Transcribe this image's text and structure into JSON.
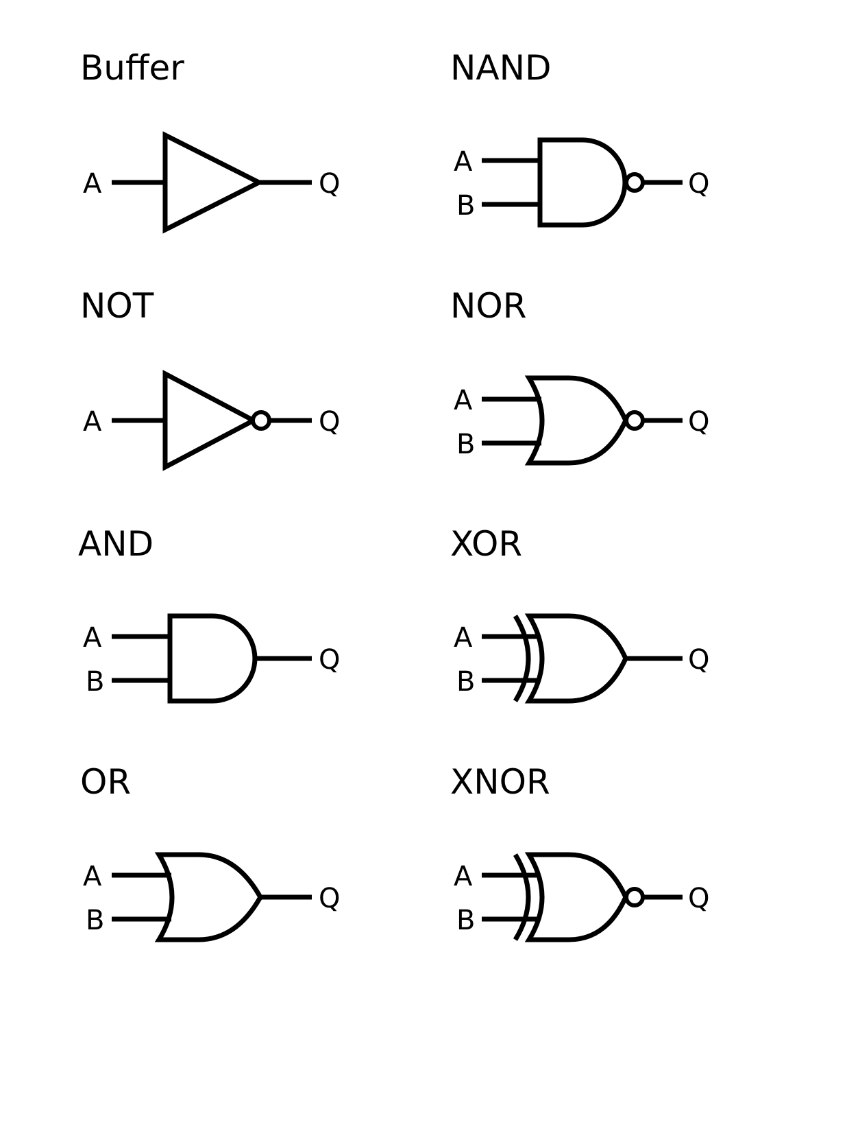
{
  "gates": [
    {
      "id": "buffer",
      "title": "Buffer",
      "shape": "buffer",
      "inputs": [
        "A"
      ],
      "output": "Q",
      "inverted": false
    },
    {
      "id": "nand",
      "title": "NAND",
      "shape": "and",
      "inputs": [
        "A",
        "B"
      ],
      "output": "Q",
      "inverted": true
    },
    {
      "id": "not",
      "title": "NOT",
      "shape": "buffer",
      "inputs": [
        "A"
      ],
      "output": "Q",
      "inverted": true
    },
    {
      "id": "nor",
      "title": "NOR",
      "shape": "or",
      "inputs": [
        "A",
        "B"
      ],
      "output": "Q",
      "inverted": true
    },
    {
      "id": "and",
      "title": "AND",
      "shape": "and",
      "inputs": [
        "A",
        "B"
      ],
      "output": "Q",
      "inverted": false
    },
    {
      "id": "xor",
      "title": "XOR",
      "shape": "xor",
      "inputs": [
        "A",
        "B"
      ],
      "output": "Q",
      "inverted": false
    },
    {
      "id": "or",
      "title": "OR",
      "shape": "or",
      "inputs": [
        "A",
        "B"
      ],
      "output": "Q",
      "inverted": false
    },
    {
      "id": "xnor",
      "title": "XNOR",
      "shape": "xor",
      "inputs": [
        "A",
        "B"
      ],
      "output": "Q",
      "inverted": true
    }
  ]
}
